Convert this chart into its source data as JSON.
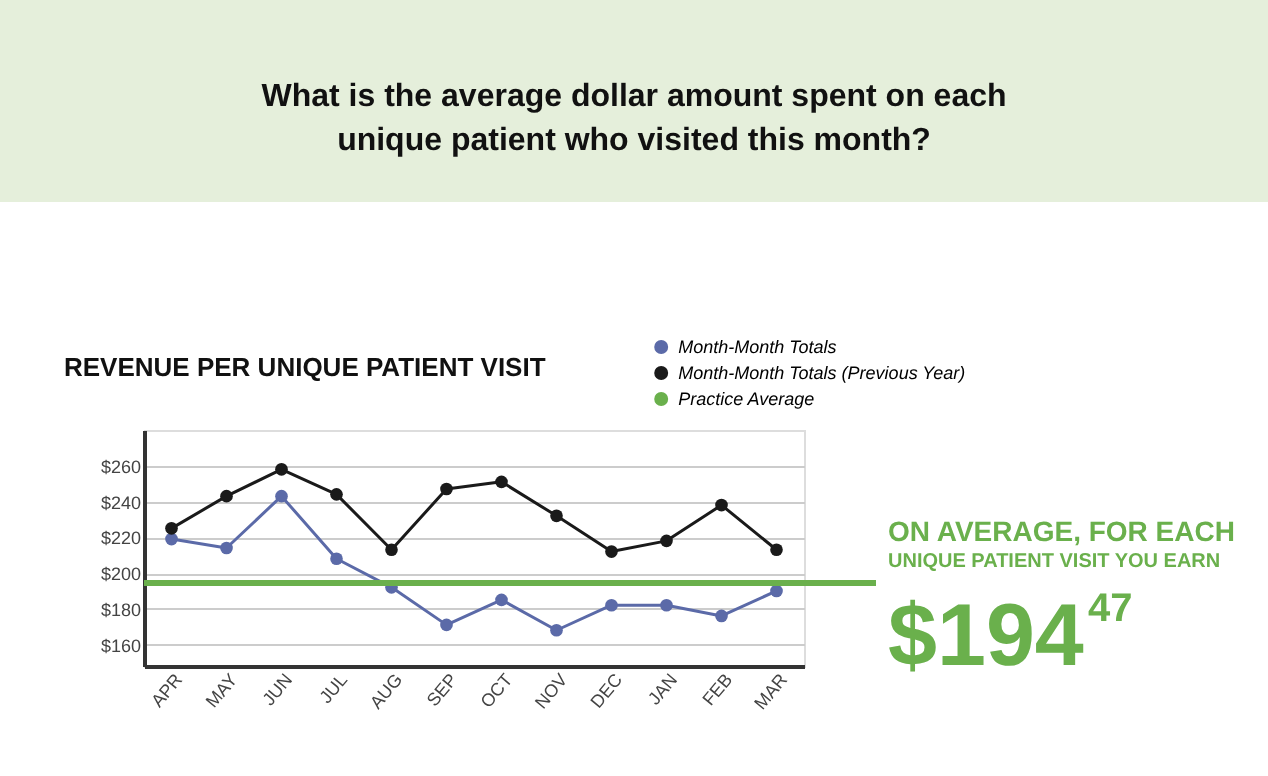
{
  "chart_data": {
    "type": "line",
    "title": "What is the average dollar amount spent on each unique patient who visited this month?",
    "subtitle": "REVENUE PER UNIQUE PATIENT VISIT",
    "categories": [
      "APR",
      "MAY",
      "JUN",
      "JUL",
      "AUG",
      "SEP",
      "OCT",
      "NOV",
      "DEC",
      "JAN",
      "FEB",
      "MAR"
    ],
    "series": [
      {
        "name": "Month-Month Totals",
        "color": "#5b6aa8",
        "values": [
          219,
          214,
          243,
          208,
          192,
          171,
          185,
          168,
          182,
          182,
          176,
          190
        ]
      },
      {
        "name": "Month-Month Totals (Previous Year)",
        "color": "#1a1a1a",
        "values": [
          225,
          243,
          258,
          244,
          213,
          247,
          251,
          232,
          212,
          218,
          238,
          213
        ]
      }
    ],
    "ref_lines": [
      {
        "axis": "y",
        "value": 194.47,
        "label": "Practice Average",
        "color": "#6ab04c"
      }
    ],
    "annotations": [
      "ON AVERAGE, FOR EACH",
      "UNIQUE PATIENT VISIT YOU EARN",
      "$194$^{47}$"
    ],
    "ylim": [
      148,
      280
    ],
    "yticks": [
      {
        "value": 160,
        "label": "$160"
      },
      {
        "value": 180,
        "label": "$180"
      },
      {
        "value": 200,
        "label": "$200"
      },
      {
        "value": 220,
        "label": "$220"
      },
      {
        "value": 240,
        "label": "$240"
      },
      {
        "value": 260,
        "label": "$260"
      }
    ],
    "grid": "y",
    "legend": "top right",
    "marker": "circle",
    "line_style": "solid"
  }
}
